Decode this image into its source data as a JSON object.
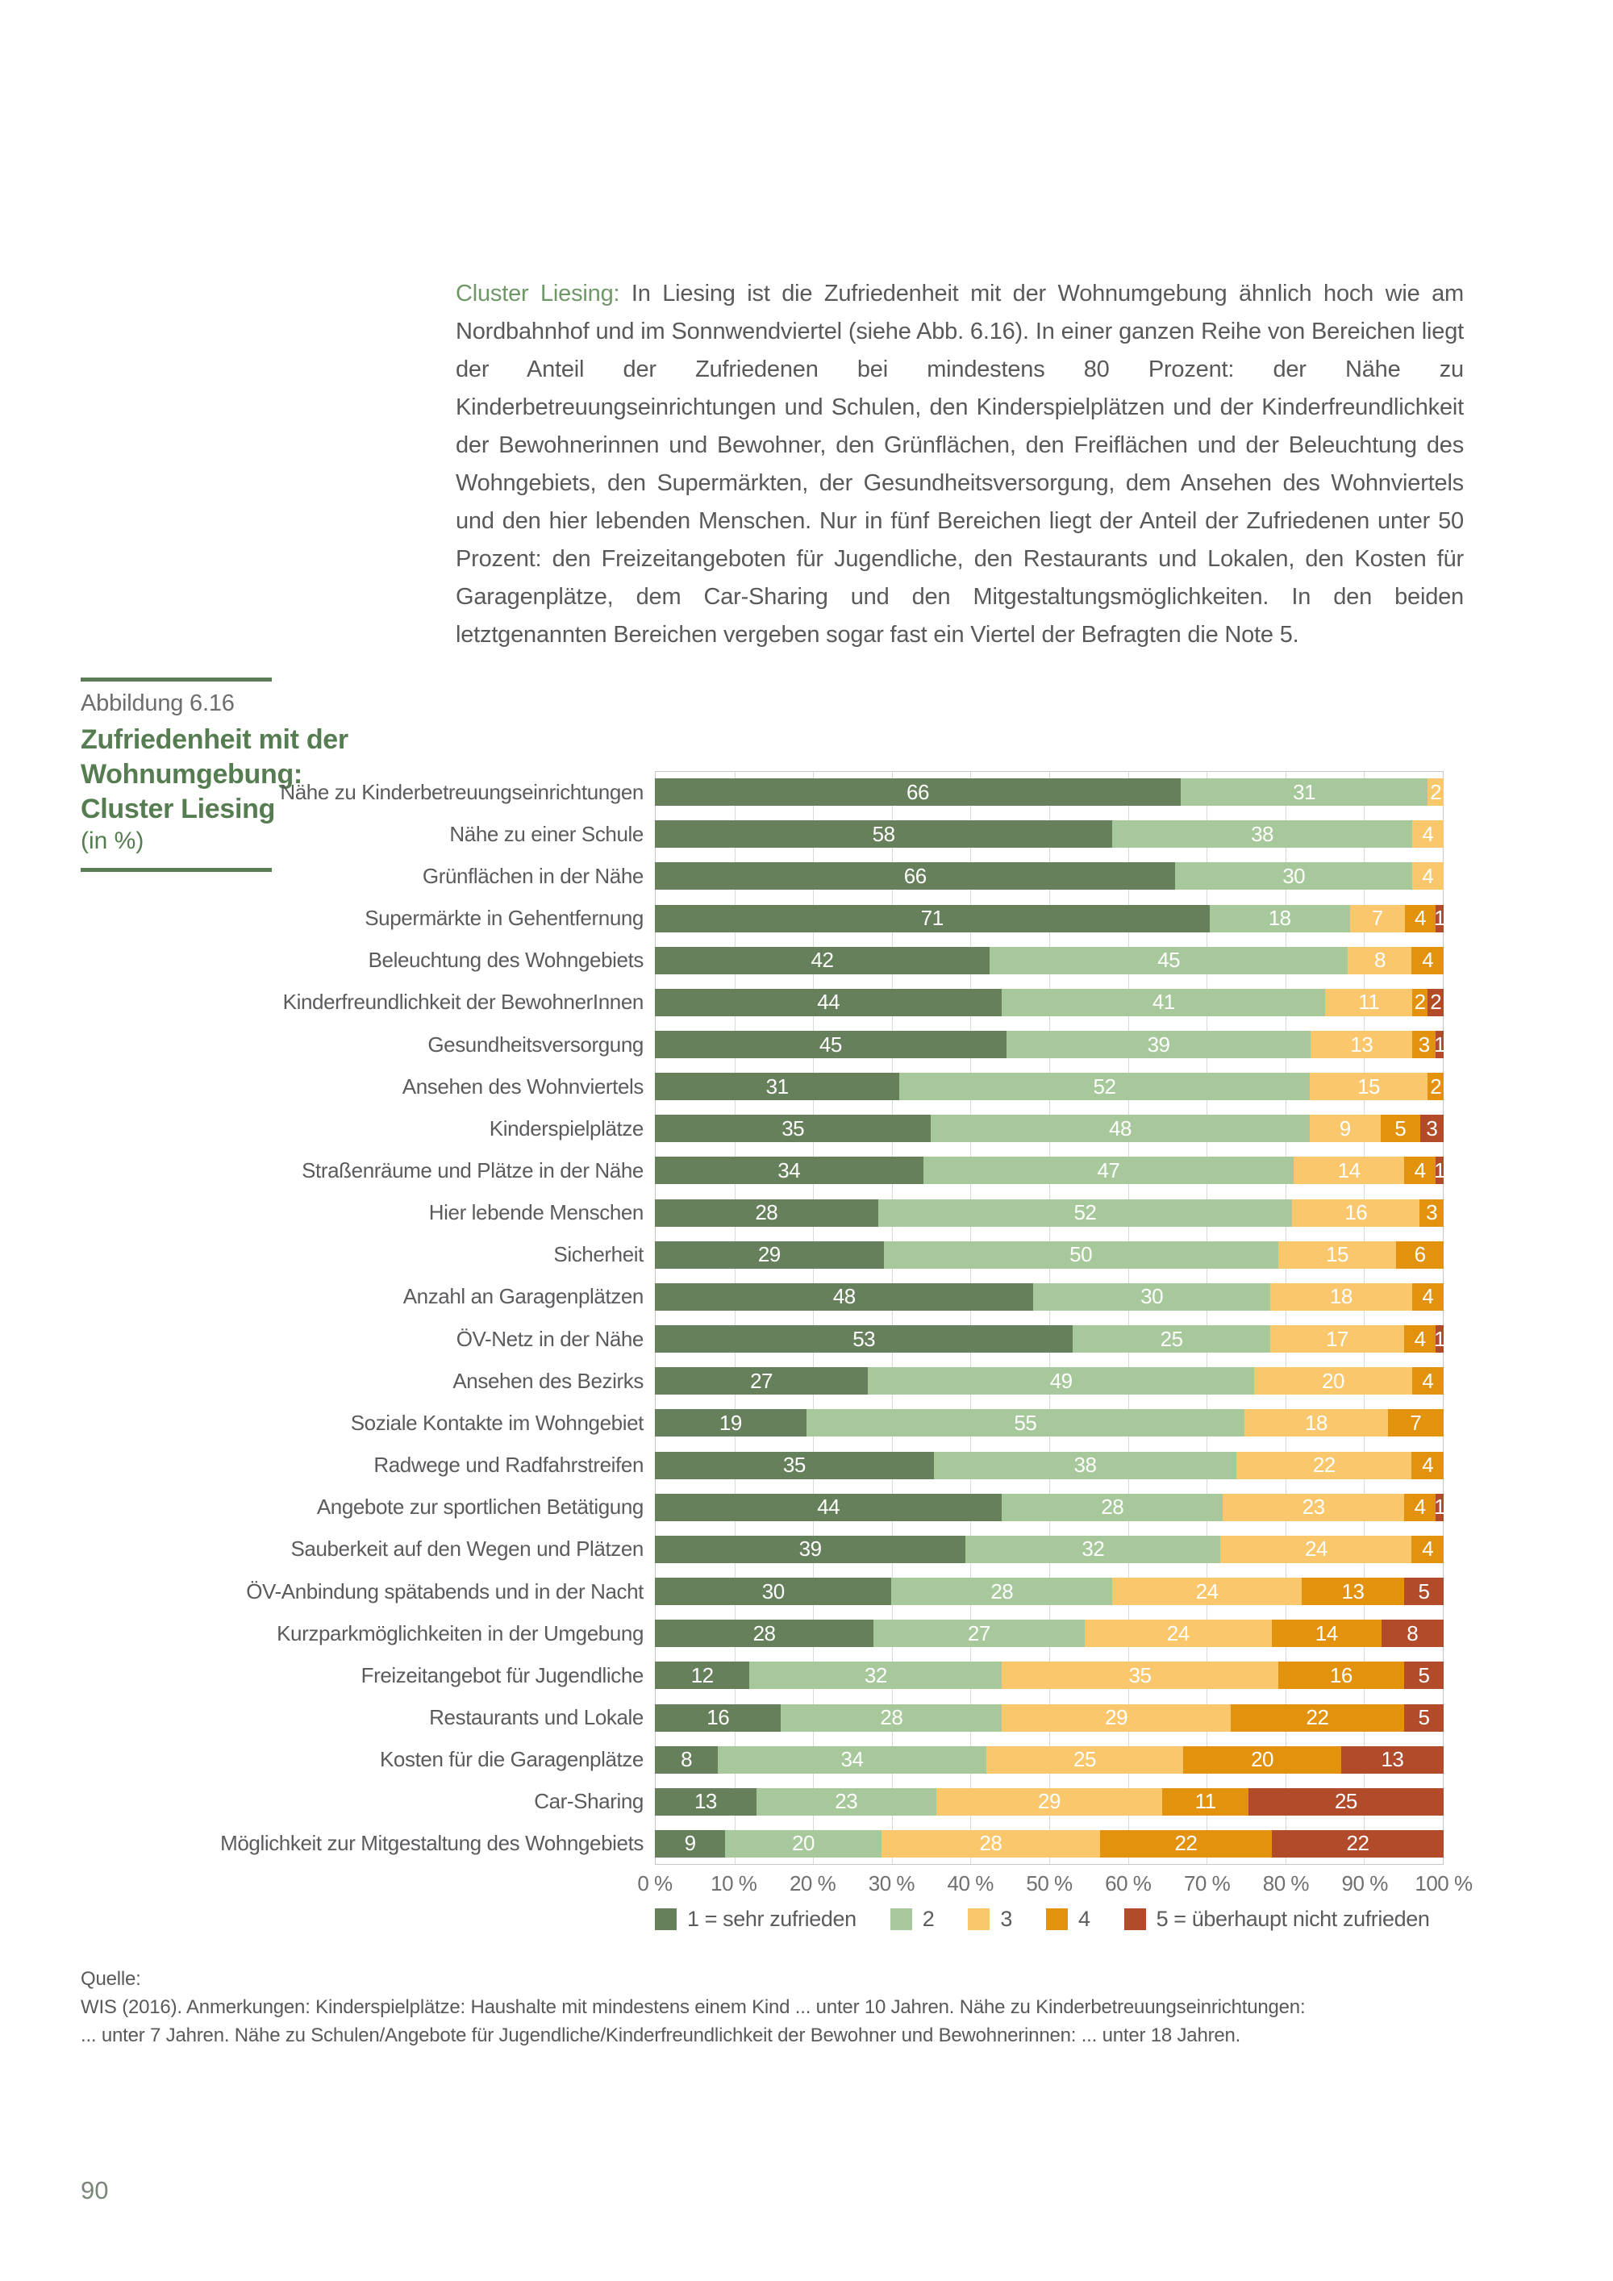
{
  "page": {
    "number": "90"
  },
  "intro": {
    "lead": "Cluster Liesing:",
    "text": " In Liesing ist die Zufriedenheit mit der Wohnumgebung ähnlich hoch wie am Nordbahnhof und im Sonnwendviertel (siehe Abb. 6.16). In einer ganzen Reihe von Bereichen liegt der Anteil der Zufriedenen bei mindestens 80 Prozent: der Nähe zu Kinderbetreuungseinrichtungen und Schulen, den Kinderspielplätzen und der Kinderfreundlichkeit der Bewohnerinnen und Bewohner, den Grünflächen, den Freiflächen und der Beleuchtung des Wohngebiets, den Supermärkten, der Gesundheitsversorgung, dem Ansehen des Wohnviertels und den hier lebenden Menschen. Nur in fünf Bereichen liegt der Anteil der Zufriedenen unter 50 Prozent: den Freizeitangeboten für Jugendliche, den Restaurants und Lokalen, den Kosten für Garagenplätze, dem Car-Sharing und den Mitgestaltungsmöglichkeiten. In den beiden letztgenannten Bereichen vergeben sogar fast ein Viertel der Befragten die Note 5."
  },
  "figure": {
    "label": "Abbildung 6.16",
    "title": "Zufriedenheit mit der Wohnumgebung: Cluster Liesing",
    "unit": "(in %)"
  },
  "chart_data": {
    "type": "bar",
    "stacked": true,
    "orientation": "horizontal",
    "title": "Zufriedenheit mit der Wohnumgebung: Cluster Liesing (in %)",
    "xlabel": "",
    "ylabel": "",
    "xlim": [
      0,
      100
    ],
    "grid": true,
    "legend_position": "bottom",
    "xticks": [
      "0 %",
      "10 %",
      "20 %",
      "30 %",
      "40 %",
      "50 %",
      "60 %",
      "70 %",
      "80 %",
      "90 %",
      "100 %"
    ],
    "categories": [
      "Nähe zu Kinderbetreuungseinrichtungen",
      "Nähe zu einer Schule",
      "Grünflächen in der Nähe",
      "Supermärkte in Gehentfernung",
      "Beleuchtung des Wohngebiets",
      "Kinderfreundlichkeit der BewohnerInnen",
      "Gesundheitsversorgung",
      "Ansehen des Wohnviertels",
      "Kinderspielplätze",
      "Straßenräume und Plätze in der Nähe",
      "Hier lebende Menschen",
      "Sicherheit",
      "Anzahl an Garagenplätzen",
      "ÖV-Netz in der Nähe",
      "Ansehen des Bezirks",
      "Soziale Kontakte im Wohngebiet",
      "Radwege und Radfahrstreifen",
      "Angebote zur sportlichen Betätigung",
      "Sauberkeit auf den Wegen und Plätzen",
      "ÖV-Anbindung spätabends und in der Nacht",
      "Kurzparkmöglichkeiten in der Umgebung",
      "Freizeitangebot für Jugendliche",
      "Restaurants und Lokale",
      "Kosten für die Garagenplätze",
      "Car-Sharing",
      "Möglichkeit zur Mitgestaltung des Wohngebiets"
    ],
    "series": [
      {
        "name": "1 = sehr zufrieden",
        "color": "#66805b",
        "values": [
          66,
          58,
          66,
          71,
          42,
          44,
          45,
          31,
          35,
          34,
          28,
          29,
          48,
          53,
          27,
          19,
          35,
          44,
          39,
          30,
          28,
          12,
          16,
          8,
          13,
          9
        ]
      },
      {
        "name": "2",
        "color": "#a7c89b",
        "values": [
          31,
          38,
          30,
          18,
          45,
          41,
          39,
          52,
          48,
          47,
          52,
          50,
          30,
          25,
          49,
          55,
          38,
          28,
          32,
          28,
          27,
          32,
          28,
          34,
          23,
          20
        ]
      },
      {
        "name": "3",
        "color": "#fac76d",
        "values": [
          2,
          4,
          4,
          7,
          8,
          11,
          13,
          15,
          9,
          14,
          16,
          15,
          18,
          17,
          20,
          18,
          22,
          23,
          24,
          24,
          24,
          35,
          29,
          25,
          29,
          28
        ]
      },
      {
        "name": "4",
        "color": "#e3920e",
        "values": [
          0,
          0,
          0,
          4,
          4,
          2,
          3,
          2,
          5,
          4,
          3,
          6,
          4,
          4,
          4,
          7,
          4,
          4,
          4,
          13,
          14,
          16,
          22,
          20,
          11,
          22
        ]
      },
      {
        "name": "5 = überhaupt nicht zufrieden",
        "color": "#b14b2a",
        "values": [
          0,
          0,
          0,
          1,
          0,
          2,
          1,
          0,
          3,
          1,
          0,
          0,
          0,
          1,
          0,
          0,
          0,
          1,
          0,
          5,
          8,
          5,
          5,
          13,
          25,
          22
        ]
      }
    ]
  },
  "source": {
    "label": "Quelle:",
    "line1": "WIS (2016). Anmerkungen: Kinderspielplätze: Haushalte mit mindestens einem Kind ... unter 10 Jahren. Nähe zu Kinderbetreuungseinrichtungen:",
    "line2": "... unter 7 Jahren. Nähe zu Schulen/Angebote für Jugendliche/Kinderfreundlichkeit der Bewohner und Bewohnerinnen: ... unter 18 Jahren."
  }
}
